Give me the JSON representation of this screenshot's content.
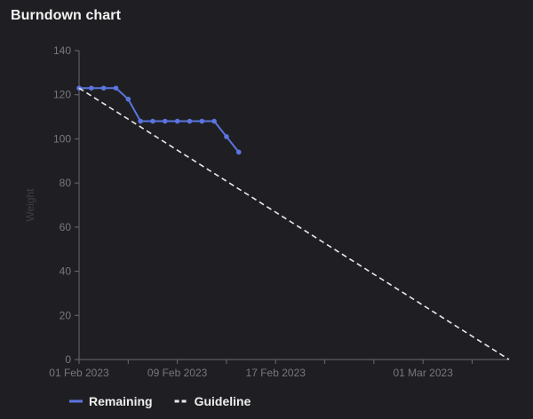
{
  "panel": {
    "title": "Burndown chart"
  },
  "chart_data": {
    "type": "line",
    "title": "Burndown chart",
    "xlabel": "",
    "ylabel": "Weight",
    "ylim": [
      0,
      140
    ],
    "yticks": [
      0,
      20,
      40,
      60,
      80,
      100,
      120,
      140
    ],
    "xlim": [
      "2023-02-01",
      "2023-03-08"
    ],
    "x_labeled_ticks": [
      "01 Feb 2023",
      "09 Feb 2023",
      "17 Feb 2023",
      "01 Mar 2023"
    ],
    "x_minor_tick_dates": [
      "2023-02-05",
      "2023-02-13",
      "2023-02-21",
      "2023-02-25",
      "2023-03-05"
    ],
    "grid": false,
    "legend_position": "bottom-left",
    "colors": {
      "background": "#1f1f23",
      "remaining": "#5b74e0",
      "guideline": "#e8e8e8",
      "axis": "#6a6a70"
    },
    "series": [
      {
        "name": "Remaining",
        "style": "solid",
        "markers": true,
        "x": [
          "2023-02-01",
          "2023-02-02",
          "2023-02-03",
          "2023-02-04",
          "2023-02-05",
          "2023-02-06",
          "2023-02-07",
          "2023-02-08",
          "2023-02-09",
          "2023-02-10",
          "2023-02-11",
          "2023-02-12",
          "2023-02-13",
          "2023-02-14"
        ],
        "y": [
          123,
          123,
          123,
          123,
          118,
          108,
          108,
          108,
          108,
          108,
          108,
          108,
          101,
          94
        ]
      },
      {
        "name": "Guideline",
        "style": "dashed",
        "markers": false,
        "x": [
          "2023-02-01",
          "2023-03-08"
        ],
        "y": [
          123,
          0
        ]
      }
    ]
  }
}
